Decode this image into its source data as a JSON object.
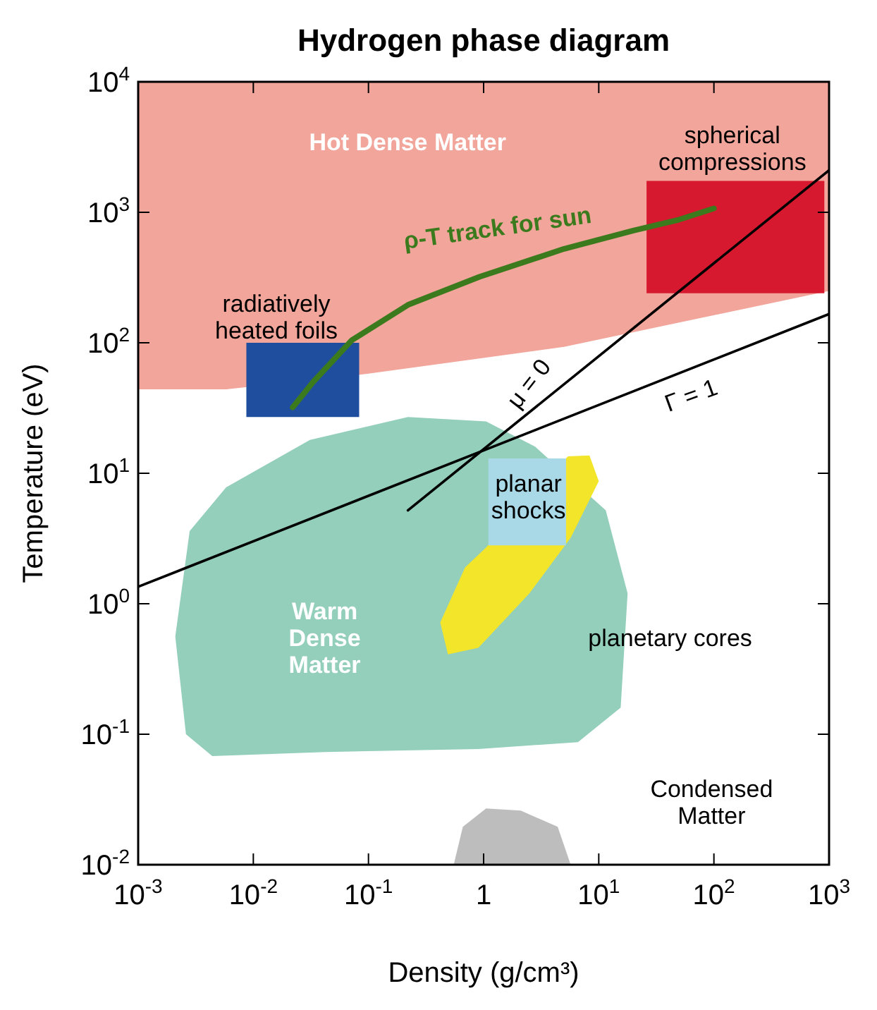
{
  "chart_data": {
    "type": "area",
    "title": "Hydrogen phase diagram",
    "xlabel": "Density (g/cm³)",
    "ylabel": "Temperature (eV)",
    "log": "xy",
    "xlim": [
      0.001,
      1000
    ],
    "ylim": [
      0.01,
      10000
    ],
    "xticks": [
      {
        "value": 0.001,
        "label": "10$^{-3}$"
      },
      {
        "value": 0.01,
        "label": "10$^{-2}$"
      },
      {
        "value": 0.1,
        "label": "10$^{-1}$"
      },
      1,
      {
        "value": 10,
        "label": "10$^{1}$"
      },
      {
        "value": 100,
        "label": "10$^{2}$"
      },
      {
        "value": 1000,
        "label": "10$^{3}$"
      }
    ],
    "yticks": [
      {
        "value": 0.01,
        "label": "10$^{-2}$"
      },
      {
        "value": 0.1,
        "label": "10$^{-1}$"
      },
      {
        "value": 1,
        "label": "10$^{0}$"
      },
      {
        "value": 10,
        "label": "10$^{1}$"
      },
      {
        "value": 100,
        "label": "10$^{2}$"
      },
      {
        "value": 1000,
        "label": "10$^{3}$"
      },
      {
        "value": 10000,
        "label": "10$^{4}$"
      }
    ],
    "series": [
      {
        "color": "#f2a59a",
        "x": [
          0.001,
          1000,
          1000,
          5,
          0.1,
          0.0058,
          0.001
        ],
        "values": [
          10000,
          10000,
          250,
          93,
          58,
          44,
          44
        ]
      },
      {
        "color": "#93cfbb",
        "x": [
          0.0028,
          0.0058,
          0.031,
          0.22,
          1.05,
          2.8,
          11.5,
          17.8,
          15.5,
          6.6,
          0.9,
          0.042,
          0.0044,
          0.0026,
          0.0021
        ],
        "values": [
          3.6,
          7.8,
          18,
          27,
          25,
          16,
          5.2,
          1.2,
          0.16,
          0.087,
          0.077,
          0.073,
          0.068,
          0.1,
          0.56
        ]
      },
      {
        "color": "#f3e52a",
        "x": [
          0.42,
          0.69,
          1.05,
          5.4,
          8.3,
          10,
          5.7,
          2.5,
          0.9,
          0.49
        ],
        "values": [
          0.72,
          1.9,
          2.7,
          13.5,
          13.7,
          8.7,
          3.2,
          1.2,
          0.46,
          0.41
        ]
      },
      {
        "color": "#a9d8e6",
        "x": [
          1.1,
          5.2,
          5.2,
          1.1
        ],
        "values": [
          13,
          13,
          2.8,
          2.8
        ]
      },
      {
        "color": "#bdbdbd",
        "x": [
          0.55,
          0.66,
          1.05,
          2.1,
          4.4,
          5.7
        ],
        "values": [
          0.01,
          0.0195,
          0.027,
          0.026,
          0.0195,
          0.01
        ]
      },
      {
        "color": "#1f4e9e",
        "x": [
          0.0087,
          0.083,
          0.083,
          0.0087
        ],
        "values": [
          100,
          100,
          27,
          27
        ]
      },
      {
        "color": "#d7192f",
        "x": [
          26,
          910,
          910,
          26
        ],
        "values": [
          1740,
          1740,
          240,
          240
        ]
      },
      {
        "type": "line",
        "color": "#000000",
        "x": [
          0.001,
          1000
        ],
        "values": [
          1.35,
          166
        ]
      },
      {
        "type": "line",
        "color": "#000000",
        "x": [
          0.22,
          1000
        ],
        "values": [
          5.2,
          2100
        ]
      },
      {
        "type": "line",
        "color": "#3c7a1e",
        "x": [
          0.022,
          0.033,
          0.072,
          0.22,
          0.92,
          5,
          20,
          48,
          100
        ],
        "values": [
          32,
          50,
          105,
          195,
          320,
          525,
          725,
          870,
          1070
        ]
      }
    ],
    "annotations": [
      "Hot Dense Matter",
      "spherical\ncompressions",
      "ρ-T track for sun",
      "radiatively\nheated foils",
      "μ = 0",
      "Γ = 1",
      "planar\nshocks",
      "Warm\nDense\nMatter",
      "planetary cores",
      "Condensed\nMatter"
    ]
  }
}
